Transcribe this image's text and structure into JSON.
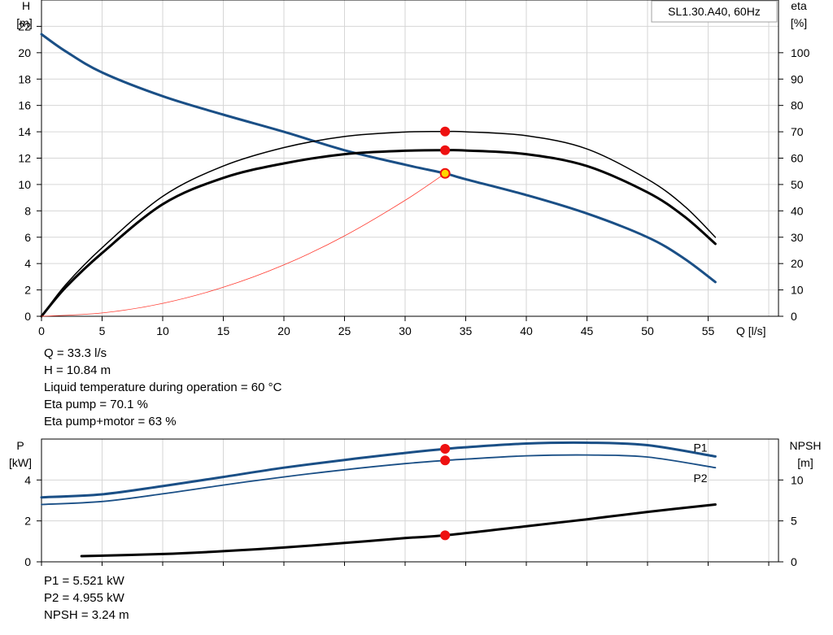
{
  "chart_data": [
    {
      "type": "line",
      "title": "SL1.30.A40, 60Hz",
      "xlabel": "Q [l/s]",
      "ylabel_left": [
        "H",
        "[m]"
      ],
      "ylabel_right": [
        "eta",
        "[%]"
      ],
      "xlim": [
        0,
        60
      ],
      "xticks": [
        0,
        5,
        10,
        15,
        20,
        25,
        30,
        35,
        40,
        45,
        50,
        55
      ],
      "ylim_left": [
        0,
        24
      ],
      "yticks_left": [
        0,
        2,
        4,
        6,
        8,
        10,
        12,
        14,
        16,
        18,
        20,
        22
      ],
      "ylim_right": [
        0,
        120
      ],
      "yticks_right": [
        0,
        10,
        20,
        30,
        40,
        50,
        60,
        70,
        80,
        90,
        100
      ],
      "grid": true,
      "series": [
        {
          "axis": "left",
          "color": "#1a4f86",
          "width": 3,
          "x": [
            0,
            2,
            5,
            10,
            15,
            20,
            25,
            30,
            33.3,
            35,
            40,
            45,
            50,
            53,
            55.6
          ],
          "y": [
            21.4,
            20.1,
            18.5,
            16.7,
            15.3,
            14.0,
            12.6,
            11.5,
            10.84,
            10.4,
            9.2,
            7.8,
            6.0,
            4.4,
            2.6
          ]
        },
        {
          "axis": "right",
          "color": "#000000",
          "width": 1.5,
          "x": [
            0,
            2,
            5,
            10,
            15,
            20,
            25,
            30,
            33.3,
            35,
            40,
            45,
            50,
            53,
            55.6
          ],
          "y": [
            0,
            12,
            26,
            45.5,
            57,
            64,
            68.2,
            69.9,
            70.1,
            70.0,
            68.5,
            63.5,
            52,
            42,
            30
          ]
        },
        {
          "axis": "right",
          "color": "#000000",
          "width": 3,
          "x": [
            0,
            2,
            5,
            10,
            15,
            20,
            25,
            30,
            33.3,
            35,
            40,
            45,
            50,
            53,
            55.6
          ],
          "y": [
            0,
            11,
            24,
            42.5,
            52.5,
            58,
            61.5,
            62.8,
            63.0,
            62.9,
            61.5,
            57,
            47,
            38,
            27.5
          ]
        },
        {
          "axis": "left",
          "color": "#ff3b30",
          "width": 0.8,
          "x": [
            0,
            5,
            10,
            15,
            20,
            25,
            30,
            33.3
          ],
          "y": [
            0,
            0.25,
            0.98,
            2.2,
            3.9,
            6.1,
            8.8,
            10.84
          ]
        }
      ],
      "markers": [
        {
          "axis": "right",
          "x": 33.3,
          "y": 70.1,
          "color": "#ee1111"
        },
        {
          "axis": "right",
          "x": 33.3,
          "y": 63.0,
          "color": "#ee1111"
        },
        {
          "axis": "left",
          "x": 33.3,
          "y": 10.84,
          "color": "#ffd700",
          "stroke": "#ee1111"
        }
      ]
    },
    {
      "type": "line",
      "ylabel_left": [
        "P",
        "[kW]"
      ],
      "ylabel_right": [
        "NPSH",
        "[m]"
      ],
      "xlim": [
        0,
        60
      ],
      "ylim_left": [
        0,
        6
      ],
      "yticks_left": [
        0,
        2,
        4
      ],
      "ylim_right": [
        0,
        15
      ],
      "yticks_right": [
        0,
        5,
        10
      ],
      "grid": true,
      "series": [
        {
          "name": "P1",
          "axis": "left",
          "color": "#1a4f86",
          "width": 3,
          "x": [
            0,
            5,
            10,
            15,
            20,
            25,
            30,
            33.3,
            35,
            40,
            45,
            50,
            55.6
          ],
          "y": [
            3.15,
            3.3,
            3.7,
            4.15,
            4.6,
            4.98,
            5.32,
            5.521,
            5.6,
            5.78,
            5.82,
            5.7,
            5.15
          ]
        },
        {
          "name": "P2",
          "axis": "left",
          "color": "#1a4f86",
          "width": 1.8,
          "x": [
            0,
            5,
            10,
            15,
            20,
            25,
            30,
            33.3,
            35,
            40,
            45,
            50,
            55.6
          ],
          "y": [
            2.8,
            2.95,
            3.32,
            3.75,
            4.15,
            4.5,
            4.8,
            4.955,
            5.02,
            5.18,
            5.22,
            5.12,
            4.6
          ]
        },
        {
          "axis": "right",
          "color": "#000000",
          "width": 3,
          "x": [
            3.3,
            10,
            15,
            20,
            25,
            30,
            33.3,
            40,
            45,
            50,
            55.6
          ],
          "y": [
            0.7,
            0.95,
            1.3,
            1.75,
            2.3,
            2.9,
            3.24,
            4.35,
            5.2,
            6.1,
            7.0
          ]
        }
      ],
      "markers": [
        {
          "axis": "left",
          "x": 33.3,
          "y": 5.521,
          "color": "#ee1111"
        },
        {
          "axis": "left",
          "x": 33.3,
          "y": 4.955,
          "color": "#ee1111"
        },
        {
          "axis": "right",
          "x": 33.3,
          "y": 3.24,
          "color": "#ee1111"
        }
      ]
    }
  ],
  "duty_info": [
    "Q = 33.3 l/s",
    "H = 10.84 m",
    "Liquid temperature during operation = 60 °C",
    "Eta pump = 70.1 %",
    "Eta pump+motor = 63 %"
  ],
  "power_info": [
    "P1 = 5.521 kW",
    "P2 = 4.955 kW",
    "NPSH = 3.24 m"
  ]
}
